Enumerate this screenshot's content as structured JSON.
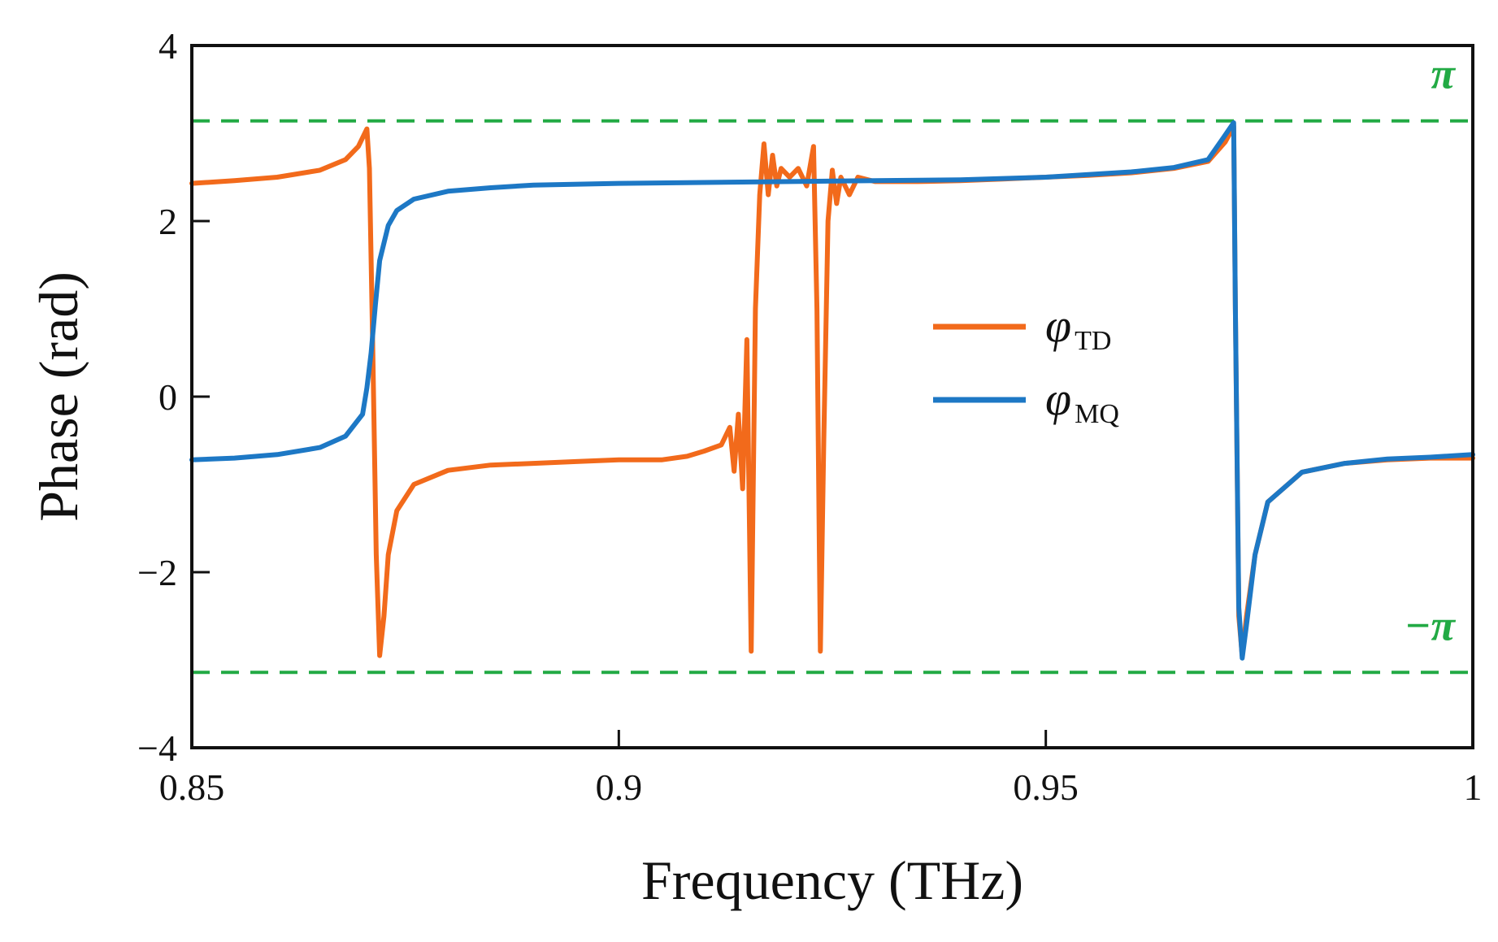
{
  "chart_data": {
    "type": "line",
    "title": "",
    "xlabel": "Frequency (THz)",
    "ylabel": "Phase (rad)",
    "xlim": [
      0.85,
      1.0
    ],
    "ylim": [
      -4,
      4
    ],
    "grid": false,
    "legend_position": "center-right",
    "x_ticks": [
      0.85,
      0.9,
      0.95,
      1.0
    ],
    "x_tick_labels": [
      "0.85",
      "0.9",
      "0.95",
      "1"
    ],
    "y_ticks": [
      -4,
      -2,
      0,
      2,
      4
    ],
    "y_tick_labels": [
      "−4",
      "−2",
      "0",
      "2",
      "4"
    ],
    "reference_lines": [
      {
        "y": 3.1416,
        "label": "π",
        "color": "#22aa44",
        "style": "dashed"
      },
      {
        "y": -3.1416,
        "label": "−π",
        "color": "#22aa44",
        "style": "dashed"
      }
    ],
    "series": [
      {
        "name": "φTD",
        "symbol": "φ",
        "subscript": "TD",
        "color": "#f26a1b",
        "points": [
          [
            0.85,
            2.43
          ],
          [
            0.855,
            2.46
          ],
          [
            0.86,
            2.5
          ],
          [
            0.865,
            2.58
          ],
          [
            0.868,
            2.7
          ],
          [
            0.8695,
            2.85
          ],
          [
            0.8705,
            3.05
          ],
          [
            0.8708,
            2.6
          ],
          [
            0.8712,
            0.5
          ],
          [
            0.8716,
            -1.8
          ],
          [
            0.872,
            -2.95
          ],
          [
            0.8725,
            -2.5
          ],
          [
            0.873,
            -1.8
          ],
          [
            0.874,
            -1.3
          ],
          [
            0.876,
            -1.0
          ],
          [
            0.88,
            -0.84
          ],
          [
            0.885,
            -0.78
          ],
          [
            0.89,
            -0.76
          ],
          [
            0.895,
            -0.74
          ],
          [
            0.9,
            -0.72
          ],
          [
            0.905,
            -0.72
          ],
          [
            0.908,
            -0.68
          ],
          [
            0.91,
            -0.62
          ],
          [
            0.912,
            -0.55
          ],
          [
            0.913,
            -0.35
          ],
          [
            0.9135,
            -0.85
          ],
          [
            0.914,
            -0.2
          ],
          [
            0.9145,
            -1.05
          ],
          [
            0.915,
            0.65
          ],
          [
            0.9155,
            -2.9
          ],
          [
            0.916,
            1.0
          ],
          [
            0.9165,
            2.3
          ],
          [
            0.917,
            2.88
          ],
          [
            0.9175,
            2.3
          ],
          [
            0.918,
            2.75
          ],
          [
            0.9185,
            2.4
          ],
          [
            0.919,
            2.6
          ],
          [
            0.92,
            2.5
          ],
          [
            0.921,
            2.6
          ],
          [
            0.922,
            2.4
          ],
          [
            0.9228,
            2.85
          ],
          [
            0.9232,
            1.0
          ],
          [
            0.9236,
            -2.9
          ],
          [
            0.924,
            -0.5
          ],
          [
            0.9245,
            2.0
          ],
          [
            0.925,
            2.58
          ],
          [
            0.9255,
            2.2
          ],
          [
            0.926,
            2.5
          ],
          [
            0.927,
            2.3
          ],
          [
            0.928,
            2.5
          ],
          [
            0.93,
            2.45
          ],
          [
            0.935,
            2.45
          ],
          [
            0.94,
            2.46
          ],
          [
            0.945,
            2.48
          ],
          [
            0.95,
            2.5
          ],
          [
            0.955,
            2.52
          ],
          [
            0.96,
            2.55
          ],
          [
            0.965,
            2.6
          ],
          [
            0.969,
            2.68
          ],
          [
            0.971,
            2.9
          ],
          [
            0.972,
            3.08
          ],
          [
            0.9722,
            1.0
          ],
          [
            0.9726,
            -2.5
          ],
          [
            0.973,
            -2.95
          ],
          [
            0.9735,
            -2.5
          ],
          [
            0.9745,
            -1.8
          ],
          [
            0.976,
            -1.2
          ],
          [
            0.98,
            -0.86
          ],
          [
            0.985,
            -0.76
          ],
          [
            0.99,
            -0.72
          ],
          [
            0.995,
            -0.7
          ],
          [
            1.0,
            -0.7
          ]
        ]
      },
      {
        "name": "φMQ",
        "symbol": "φ",
        "subscript": "MQ",
        "color": "#1d78c5",
        "points": [
          [
            0.85,
            -0.72
          ],
          [
            0.855,
            -0.7
          ],
          [
            0.86,
            -0.66
          ],
          [
            0.865,
            -0.58
          ],
          [
            0.868,
            -0.45
          ],
          [
            0.87,
            -0.2
          ],
          [
            0.8705,
            0.1
          ],
          [
            0.871,
            0.5
          ],
          [
            0.8715,
            1.05
          ],
          [
            0.872,
            1.55
          ],
          [
            0.873,
            1.95
          ],
          [
            0.874,
            2.12
          ],
          [
            0.876,
            2.25
          ],
          [
            0.88,
            2.34
          ],
          [
            0.885,
            2.38
          ],
          [
            0.89,
            2.41
          ],
          [
            0.9,
            2.43
          ],
          [
            0.91,
            2.44
          ],
          [
            0.92,
            2.45
          ],
          [
            0.93,
            2.46
          ],
          [
            0.94,
            2.47
          ],
          [
            0.95,
            2.5
          ],
          [
            0.955,
            2.53
          ],
          [
            0.96,
            2.56
          ],
          [
            0.965,
            2.61
          ],
          [
            0.969,
            2.7
          ],
          [
            0.9708,
            2.95
          ],
          [
            0.972,
            3.12
          ],
          [
            0.9722,
            1.0
          ],
          [
            0.9726,
            -2.4
          ],
          [
            0.973,
            -2.98
          ],
          [
            0.9735,
            -2.6
          ],
          [
            0.9745,
            -1.8
          ],
          [
            0.976,
            -1.2
          ],
          [
            0.98,
            -0.86
          ],
          [
            0.985,
            -0.76
          ],
          [
            0.99,
            -0.71
          ],
          [
            0.995,
            -0.69
          ],
          [
            1.0,
            -0.66
          ]
        ]
      }
    ]
  }
}
